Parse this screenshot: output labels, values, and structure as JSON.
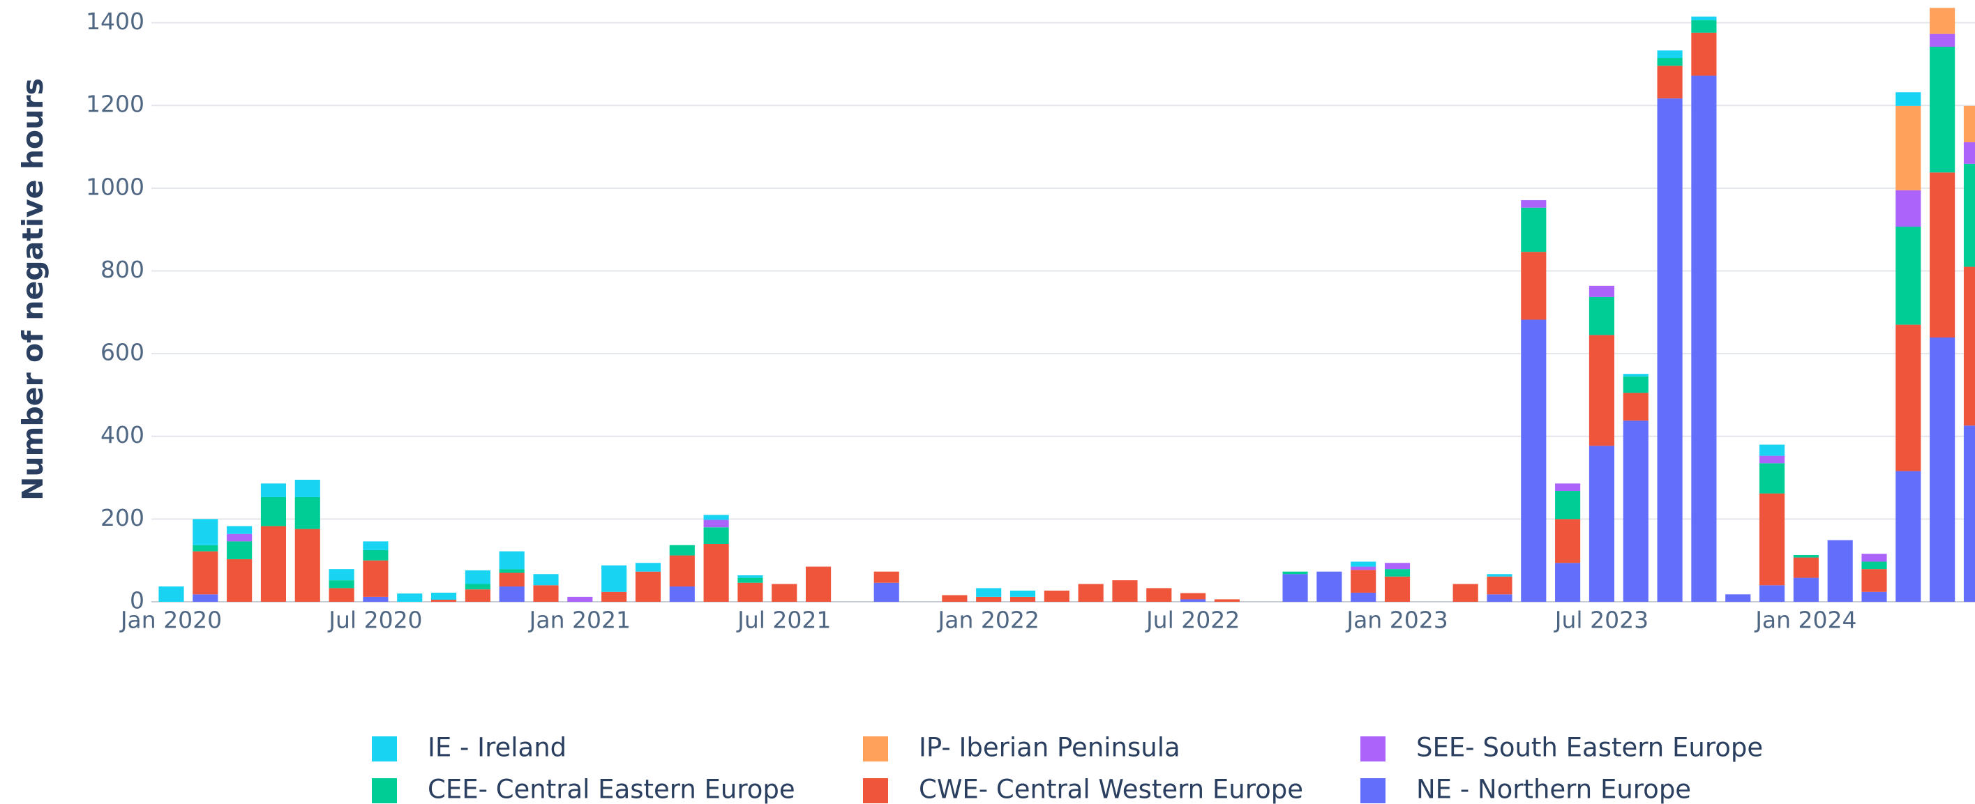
{
  "chart_data": {
    "type": "stacked_bar",
    "y_label": "Number of negative hours",
    "categories": [
      "Jan 2020",
      null,
      null,
      null,
      null,
      null,
      "Jul 2020",
      null,
      null,
      null,
      null,
      null,
      "Jan 2021",
      null,
      null,
      null,
      null,
      null,
      "Jul 2021",
      null,
      null,
      null,
      null,
      null,
      "Jan 2022",
      null,
      null,
      null,
      null,
      null,
      "Jul 2022",
      null,
      null,
      null,
      null,
      null,
      "Jan 2023",
      null,
      null,
      null,
      null,
      null,
      "Jul 2023",
      null,
      null,
      null,
      null,
      null,
      "Jan 2024",
      null,
      null,
      null,
      null,
      null
    ],
    "series": [
      {
        "name": "IE - Ireland",
        "color": "#19d3f3",
        "values": [
          37,
          63,
          19,
          33,
          42,
          27,
          21,
          20,
          17,
          33,
          43,
          27,
          0,
          64,
          21,
          0,
          12,
          6,
          0,
          0,
          0,
          0,
          0,
          0,
          21,
          15,
          0,
          0,
          0,
          0,
          0,
          0,
          0,
          0,
          0,
          12,
          0,
          0,
          0,
          6,
          0,
          0,
          0,
          6,
          18,
          9,
          0,
          27,
          0,
          0,
          0,
          33,
          0,
          0
        ]
      },
      {
        "name": "IP- Iberian Peninsula",
        "color": "#ffa15a",
        "values": [
          0,
          0,
          0,
          0,
          0,
          0,
          0,
          0,
          0,
          0,
          0,
          0,
          0,
          0,
          0,
          0,
          0,
          0,
          0,
          0,
          0,
          0,
          0,
          0,
          0,
          0,
          0,
          0,
          0,
          0,
          0,
          0,
          0,
          0,
          0,
          0,
          0,
          0,
          0,
          0,
          0,
          0,
          0,
          0,
          0,
          0,
          0,
          0,
          0,
          0,
          0,
          204,
          63,
          88
        ]
      },
      {
        "name": "SEE- South Eastern Europe",
        "color": "#ab63fa",
        "values": [
          0,
          0,
          18,
          0,
          0,
          0,
          0,
          0,
          0,
          0,
          0,
          0,
          12,
          0,
          0,
          0,
          18,
          0,
          0,
          0,
          0,
          0,
          0,
          0,
          0,
          0,
          0,
          0,
          0,
          0,
          0,
          0,
          0,
          0,
          0,
          8,
          15,
          0,
          0,
          0,
          18,
          18,
          27,
          0,
          0,
          0,
          0,
          18,
          0,
          0,
          19,
          88,
          31,
          52
        ]
      },
      {
        "name": "CEE- Central Eastern Europe",
        "color": "#00cc96",
        "values": [
          0,
          15,
          43,
          70,
          77,
          19,
          25,
          0,
          0,
          13,
          9,
          0,
          0,
          0,
          0,
          25,
          40,
          12,
          0,
          0,
          0,
          0,
          0,
          0,
          0,
          0,
          0,
          0,
          0,
          0,
          0,
          0,
          0,
          6,
          0,
          0,
          18,
          0,
          0,
          0,
          107,
          68,
          92,
          40,
          19,
          30,
          0,
          73,
          6,
          0,
          18,
          237,
          304,
          249
        ]
      },
      {
        "name": "CWE- Central Western Europe",
        "color": "#ef553b",
        "values": [
          0,
          104,
          103,
          183,
          176,
          33,
          88,
          0,
          5,
          30,
          33,
          40,
          0,
          24,
          73,
          75,
          140,
          46,
          43,
          85,
          0,
          27,
          0,
          16,
          12,
          12,
          27,
          43,
          52,
          33,
          15,
          6,
          0,
          0,
          0,
          55,
          61,
          0,
          43,
          43,
          164,
          106,
          268,
          67,
          79,
          104,
          0,
          222,
          49,
          0,
          55,
          354,
          399,
          384
        ]
      },
      {
        "name": "NE - Northern Europe",
        "color": "#636efa",
        "values": [
          0,
          18,
          0,
          0,
          0,
          0,
          12,
          0,
          0,
          0,
          37,
          0,
          0,
          0,
          0,
          37,
          0,
          0,
          0,
          0,
          0,
          46,
          0,
          0,
          0,
          0,
          0,
          0,
          0,
          0,
          6,
          0,
          0,
          67,
          73,
          22,
          0,
          0,
          0,
          18,
          682,
          94,
          377,
          438,
          1217,
          1272,
          18,
          40,
          58,
          149,
          24,
          316,
          639,
          426
        ]
      }
    ],
    "ylim": [
      0,
      1455
    ],
    "yticks": [
      0,
      200,
      400,
      600,
      800,
      1000,
      1200,
      1400
    ],
    "grid": true,
    "legend": "bottom"
  }
}
